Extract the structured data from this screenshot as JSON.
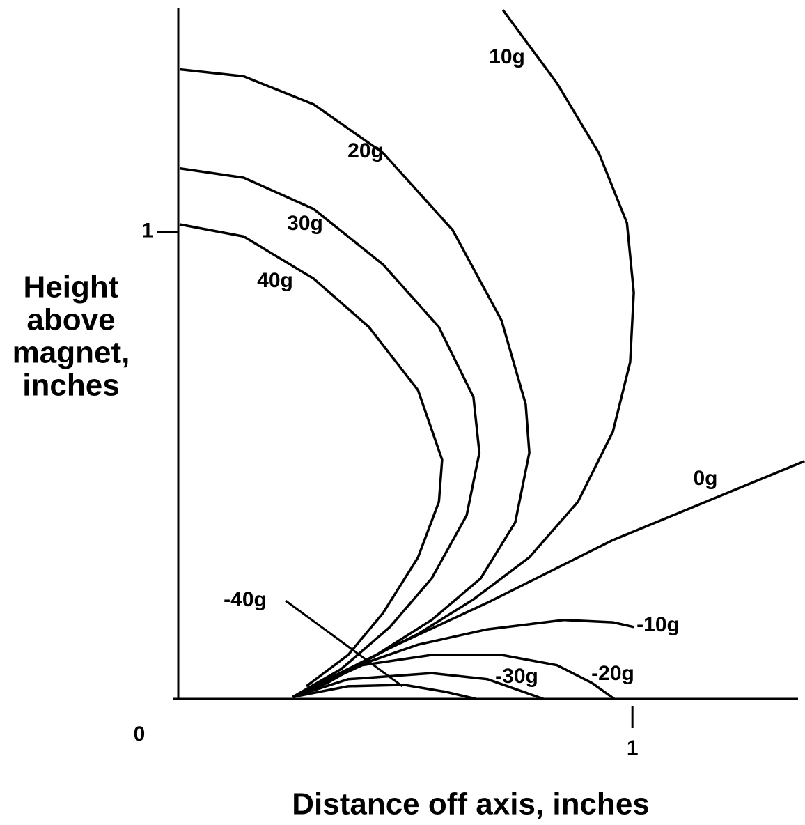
{
  "chart_data": {
    "type": "line",
    "x_label": "Distance off axis, inches",
    "y_label": [
      "Height",
      "above",
      "magnet,",
      "inches"
    ],
    "xlim": [
      0,
      1.38
    ],
    "ylim": [
      0,
      1.48
    ],
    "xticks": [
      0,
      1
    ],
    "yticks": [
      1
    ],
    "series": [
      {
        "name": "10g",
        "color": "#000000",
        "x": [
          0.715,
          0.834,
          0.926,
          0.988,
          1.003,
          0.995,
          0.957,
          0.88,
          0.773,
          0.65,
          0.528,
          0.405,
          0.313,
          0.252
        ],
        "values": [
          1.475,
          1.318,
          1.169,
          1.019,
          0.87,
          0.721,
          0.572,
          0.422,
          0.303,
          0.213,
          0.139,
          0.079,
          0.034,
          0.004
        ]
      },
      {
        "name": "20g",
        "color": "#000000",
        "x": [
          0.003,
          0.144,
          0.298,
          0.451,
          0.604,
          0.712,
          0.765,
          0.773,
          0.742,
          0.666,
          0.558,
          0.436,
          0.328,
          0.252
        ],
        "values": [
          1.348,
          1.333,
          1.273,
          1.169,
          1.004,
          0.81,
          0.631,
          0.527,
          0.378,
          0.258,
          0.169,
          0.094,
          0.034,
          0.004
        ]
      },
      {
        "name": "30g",
        "color": "#000000",
        "x": [
          0.003,
          0.144,
          0.298,
          0.451,
          0.574,
          0.65,
          0.663,
          0.635,
          0.558,
          0.466,
          0.359,
          0.252
        ],
        "values": [
          1.136,
          1.116,
          1.049,
          0.93,
          0.796,
          0.646,
          0.527,
          0.393,
          0.258,
          0.154,
          0.064,
          0.004
        ]
      },
      {
        "name": "40g",
        "color": "#000000",
        "x": [
          0.003,
          0.144,
          0.298,
          0.42,
          0.528,
          0.581,
          0.574,
          0.528,
          0.451,
          0.374,
          0.282
        ],
        "values": [
          1.016,
          0.99,
          0.9,
          0.796,
          0.661,
          0.512,
          0.422,
          0.303,
          0.184,
          0.094,
          0.027
        ]
      },
      {
        "name": "0g",
        "color": "#000000",
        "x": [
          0.252,
          0.344,
          0.466,
          0.681,
          0.957,
          1.379
        ],
        "values": [
          0.004,
          0.046,
          0.109,
          0.206,
          0.34,
          0.509
        ]
      },
      {
        "name": "-10g",
        "color": "#000000",
        "x": [
          0.252,
          0.374,
          0.528,
          0.681,
          0.85,
          0.957,
          1.003
        ],
        "values": [
          0.004,
          0.064,
          0.116,
          0.149,
          0.169,
          0.164,
          0.154
        ]
      },
      {
        "name": "-20g",
        "color": "#000000",
        "x": [
          0.252,
          0.405,
          0.558,
          0.712,
          0.834,
          0.911,
          0.96
        ],
        "values": [
          0.004,
          0.072,
          0.094,
          0.094,
          0.072,
          0.034,
          0
        ]
      },
      {
        "name": "-30g",
        "color": "#000000",
        "x": [
          0.252,
          0.374,
          0.558,
          0.681,
          0.804
        ],
        "values": [
          0.004,
          0.042,
          0.055,
          0.042,
          0
        ]
      },
      {
        "name": "-40g",
        "color": "#000000",
        "x": [
          0.252,
          0.374,
          0.497,
          0.589,
          0.655
        ],
        "values": [
          0.004,
          0.027,
          0.03,
          0.015,
          0
        ]
      }
    ]
  }
}
